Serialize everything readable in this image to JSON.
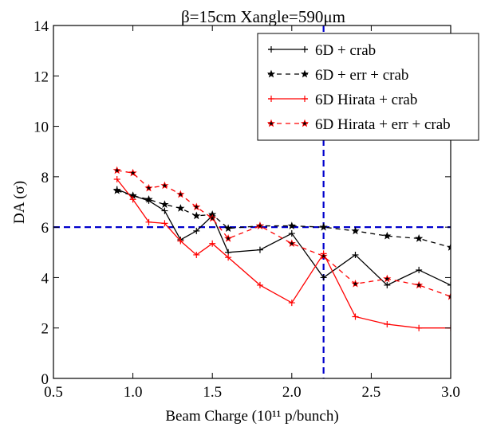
{
  "chart_data": {
    "type": "line",
    "title": "β=15cm  Xangle=590μm",
    "xlabel": "Beam Charge (10¹¹ p/bunch)",
    "ylabel": "DA (σ)",
    "xlim": [
      0.5,
      3.0
    ],
    "ylim": [
      0,
      14
    ],
    "xticks": [
      "0.5",
      "1.0",
      "1.5",
      "2.0",
      "2.5",
      "3.0"
    ],
    "yticks": [
      "0",
      "2",
      "4",
      "6",
      "8",
      "10",
      "12",
      "14"
    ],
    "grid": false,
    "legend_position": "top-right",
    "reference_lines": {
      "horizontal_y": 6,
      "vertical_x": 2.2,
      "color": "#0000cc"
    },
    "series": [
      {
        "name": "6D + crab",
        "color": "#000000",
        "linestyle": "solid",
        "marker": "plus",
        "points": [
          [
            0.9,
            7.5
          ],
          [
            1.0,
            7.25
          ],
          [
            1.1,
            7.05
          ],
          [
            1.2,
            6.65
          ],
          [
            1.3,
            5.5
          ],
          [
            1.4,
            5.85
          ],
          [
            1.5,
            6.45
          ],
          [
            1.6,
            5.0
          ],
          [
            1.8,
            5.1
          ],
          [
            2.0,
            5.75
          ],
          [
            2.2,
            4.0
          ],
          [
            2.4,
            4.9
          ],
          [
            2.6,
            3.7
          ],
          [
            2.8,
            4.3
          ],
          [
            3.0,
            3.7
          ]
        ]
      },
      {
        "name": "6D + err + crab",
        "color": "#000000",
        "linestyle": "dashed",
        "marker": "star",
        "points": [
          [
            0.9,
            7.45
          ],
          [
            1.0,
            7.25
          ],
          [
            1.1,
            7.1
          ],
          [
            1.2,
            6.9
          ],
          [
            1.3,
            6.75
          ],
          [
            1.4,
            6.45
          ],
          [
            1.5,
            6.5
          ],
          [
            1.6,
            5.95
          ],
          [
            1.8,
            6.05
          ],
          [
            2.0,
            6.05
          ],
          [
            2.2,
            6.0
          ],
          [
            2.4,
            5.85
          ],
          [
            2.6,
            5.65
          ],
          [
            2.8,
            5.55
          ],
          [
            3.0,
            5.2
          ]
        ]
      },
      {
        "name": "6D Hirata + crab",
        "color": "#ff0000",
        "linestyle": "solid",
        "marker": "plus",
        "points": [
          [
            0.9,
            7.9
          ],
          [
            1.0,
            7.1
          ],
          [
            1.1,
            6.2
          ],
          [
            1.2,
            6.15
          ],
          [
            1.3,
            5.45
          ],
          [
            1.4,
            4.9
          ],
          [
            1.5,
            5.35
          ],
          [
            1.6,
            4.8
          ],
          [
            1.8,
            3.7
          ],
          [
            2.0,
            3.0
          ],
          [
            2.2,
            4.95
          ],
          [
            2.4,
            2.45
          ],
          [
            2.6,
            2.15
          ],
          [
            2.8,
            2.0
          ],
          [
            3.0,
            2.0
          ]
        ]
      },
      {
        "name": "6D Hirata + err + crab",
        "color": "#ff0000",
        "linestyle": "dashed",
        "marker": "star",
        "points": [
          [
            0.9,
            8.25
          ],
          [
            1.0,
            8.15
          ],
          [
            1.1,
            7.55
          ],
          [
            1.2,
            7.65
          ],
          [
            1.3,
            7.3
          ],
          [
            1.4,
            6.8
          ],
          [
            1.5,
            6.35
          ],
          [
            1.6,
            5.55
          ],
          [
            1.8,
            6.05
          ],
          [
            2.0,
            5.35
          ],
          [
            2.2,
            4.85
          ],
          [
            2.4,
            3.75
          ],
          [
            2.6,
            3.95
          ],
          [
            2.8,
            3.7
          ],
          [
            3.0,
            3.25
          ]
        ]
      }
    ]
  }
}
